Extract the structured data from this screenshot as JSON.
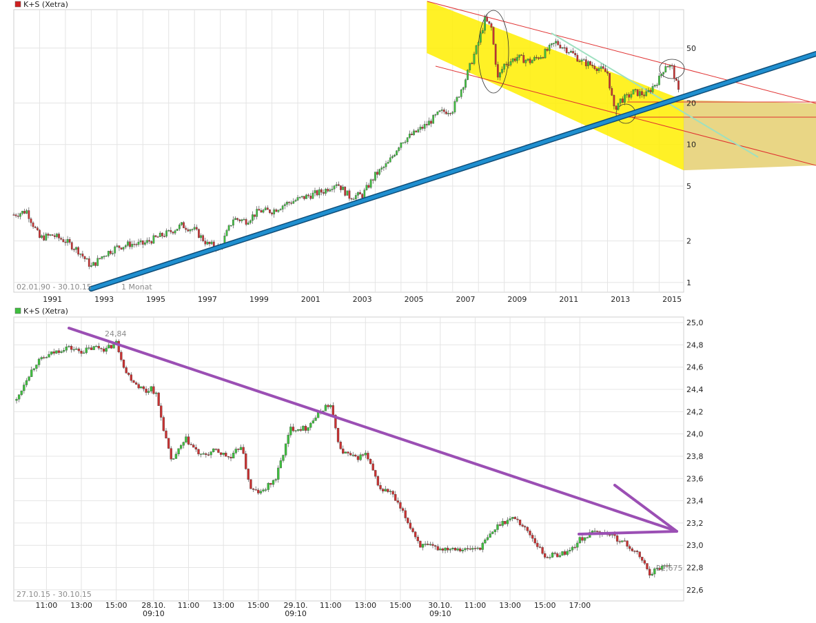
{
  "colors": {
    "up_candle": "#3fbf3f",
    "down_candle": "#c83232",
    "trendline_blue": "#1f8fd0",
    "trendline_purple": "#9b4fb4",
    "channel_fill": "#ffee00",
    "channel_fill_lower": "#e3cc66",
    "channel_line": "#e03030"
  },
  "chart_data": [
    {
      "type": "candlestick",
      "title": "K+S (Xetra)",
      "legend_icon_color": "#d02020",
      "range_label": "02.01.90 - 30.10.15",
      "interval_label": "1 Monat",
      "scale": "log",
      "ylim": [
        0.85,
        95
      ],
      "xlim": [
        1990.0,
        2015.95
      ],
      "y_ticks": [
        1,
        2,
        5,
        10,
        20,
        50
      ],
      "x_ticks": [
        "1991",
        "1993",
        "1995",
        "1997",
        "1999",
        "2001",
        "2003",
        "2005",
        "2007",
        "2009",
        "2011",
        "2013",
        "2015"
      ],
      "grid": true,
      "series": {
        "x": [
          1990.0,
          1990.5,
          1991.0,
          1991.5,
          1992.0,
          1992.5,
          1993.0,
          1993.5,
          1994.0,
          1994.5,
          1995.0,
          1995.5,
          1996.0,
          1996.5,
          1997.0,
          1997.5,
          1998.0,
          1998.5,
          1999.0,
          1999.5,
          2000.0,
          2000.5,
          2001.0,
          2001.5,
          2002.0,
          2002.5,
          2003.0,
          2003.5,
          2004.0,
          2004.5,
          2005.0,
          2005.5,
          2006.0,
          2006.5,
          2007.0,
          2007.5,
          2008.0,
          2008.25,
          2008.5,
          2008.75,
          2009.0,
          2009.5,
          2010.0,
          2010.5,
          2011.0,
          2011.5,
          2012.0,
          2012.5,
          2013.0,
          2013.25,
          2013.5,
          2013.75,
          2014.0,
          2014.5,
          2015.0,
          2015.25,
          2015.5,
          2015.75
        ],
        "close": [
          3.1,
          3.3,
          2.1,
          2.2,
          2.0,
          1.7,
          1.3,
          1.6,
          1.8,
          1.9,
          1.9,
          2.1,
          2.3,
          2.6,
          2.4,
          1.9,
          1.8,
          2.9,
          2.8,
          3.3,
          3.3,
          3.7,
          4.0,
          4.3,
          4.6,
          5.3,
          4.2,
          4.3,
          6.0,
          7.3,
          10.5,
          12.0,
          14.0,
          17.0,
          18.0,
          30.0,
          55.0,
          80.0,
          70.0,
          30.0,
          38.0,
          43.0,
          40.0,
          45.0,
          55.0,
          48.0,
          40.0,
          37.0,
          33.0,
          18.0,
          21.0,
          22.0,
          24.0,
          23.0,
          30.0,
          38.0,
          36.0,
          24.0
        ]
      }
    },
    {
      "type": "candlestick",
      "title": "K+S (Xetra)",
      "legend_icon_color": "#3fbf3f",
      "range_label": "27.10.15 - 30.10.15",
      "ylim": [
        22.5,
        25.05
      ],
      "y_ticks": [
        "22,6",
        "22,8",
        "23,0",
        "23,2",
        "23,4",
        "23,6",
        "23,8",
        "24,0",
        "24,2",
        "24,4",
        "24,6",
        "24,8",
        "25,0"
      ],
      "x_ticks": [
        {
          "label": "11:00",
          "sub": ""
        },
        {
          "label": "13:00",
          "sub": ""
        },
        {
          "label": "15:00",
          "sub": ""
        },
        {
          "label": "28.10.",
          "sub": "09:10"
        },
        {
          "label": "11:00",
          "sub": ""
        },
        {
          "label": "13:00",
          "sub": ""
        },
        {
          "label": "15:00",
          "sub": ""
        },
        {
          "label": "29.10.",
          "sub": "09:10"
        },
        {
          "label": "11:00",
          "sub": ""
        },
        {
          "label": "13:00",
          "sub": ""
        },
        {
          "label": "15:00",
          "sub": ""
        },
        {
          "label": "30.10.",
          "sub": "09:10"
        },
        {
          "label": "11:00",
          "sub": ""
        },
        {
          "label": "13:00",
          "sub": ""
        },
        {
          "label": "15:00",
          "sub": ""
        },
        {
          "label": "17:00",
          "sub": ""
        }
      ],
      "grid": true,
      "annotations": [
        {
          "label": "24,84",
          "kind": "high"
        },
        {
          "label": "22,675",
          "kind": "low"
        }
      ],
      "series": {
        "x_index": [
          0,
          4,
          8,
          14,
          20,
          26,
          32,
          36,
          40,
          44,
          48,
          52,
          54,
          56,
          62,
          68,
          74,
          80,
          86,
          90,
          94,
          98,
          104,
          110,
          116,
          120,
          124,
          126,
          130,
          136,
          140,
          146,
          150,
          156,
          162,
          170,
          176,
          180,
          186,
          194,
          200,
          206,
          212,
          218,
          222,
          226,
          232,
          238,
          244,
          250,
          254,
          258,
          262
        ],
        "close": [
          24.3,
          24.5,
          24.64,
          24.72,
          24.78,
          24.74,
          24.78,
          24.76,
          24.82,
          24.55,
          24.45,
          24.38,
          24.42,
          24.35,
          23.75,
          23.95,
          23.8,
          23.85,
          23.78,
          23.9,
          23.5,
          23.47,
          23.6,
          24.05,
          24.05,
          24.15,
          24.25,
          24.25,
          23.85,
          23.78,
          23.82,
          23.5,
          23.48,
          23.25,
          23.0,
          22.97,
          22.98,
          22.96,
          22.98,
          23.2,
          23.25,
          23.1,
          22.9,
          22.92,
          22.95,
          23.05,
          23.12,
          23.1,
          23.02,
          22.9,
          22.75,
          22.8,
          22.84
        ]
      }
    }
  ]
}
